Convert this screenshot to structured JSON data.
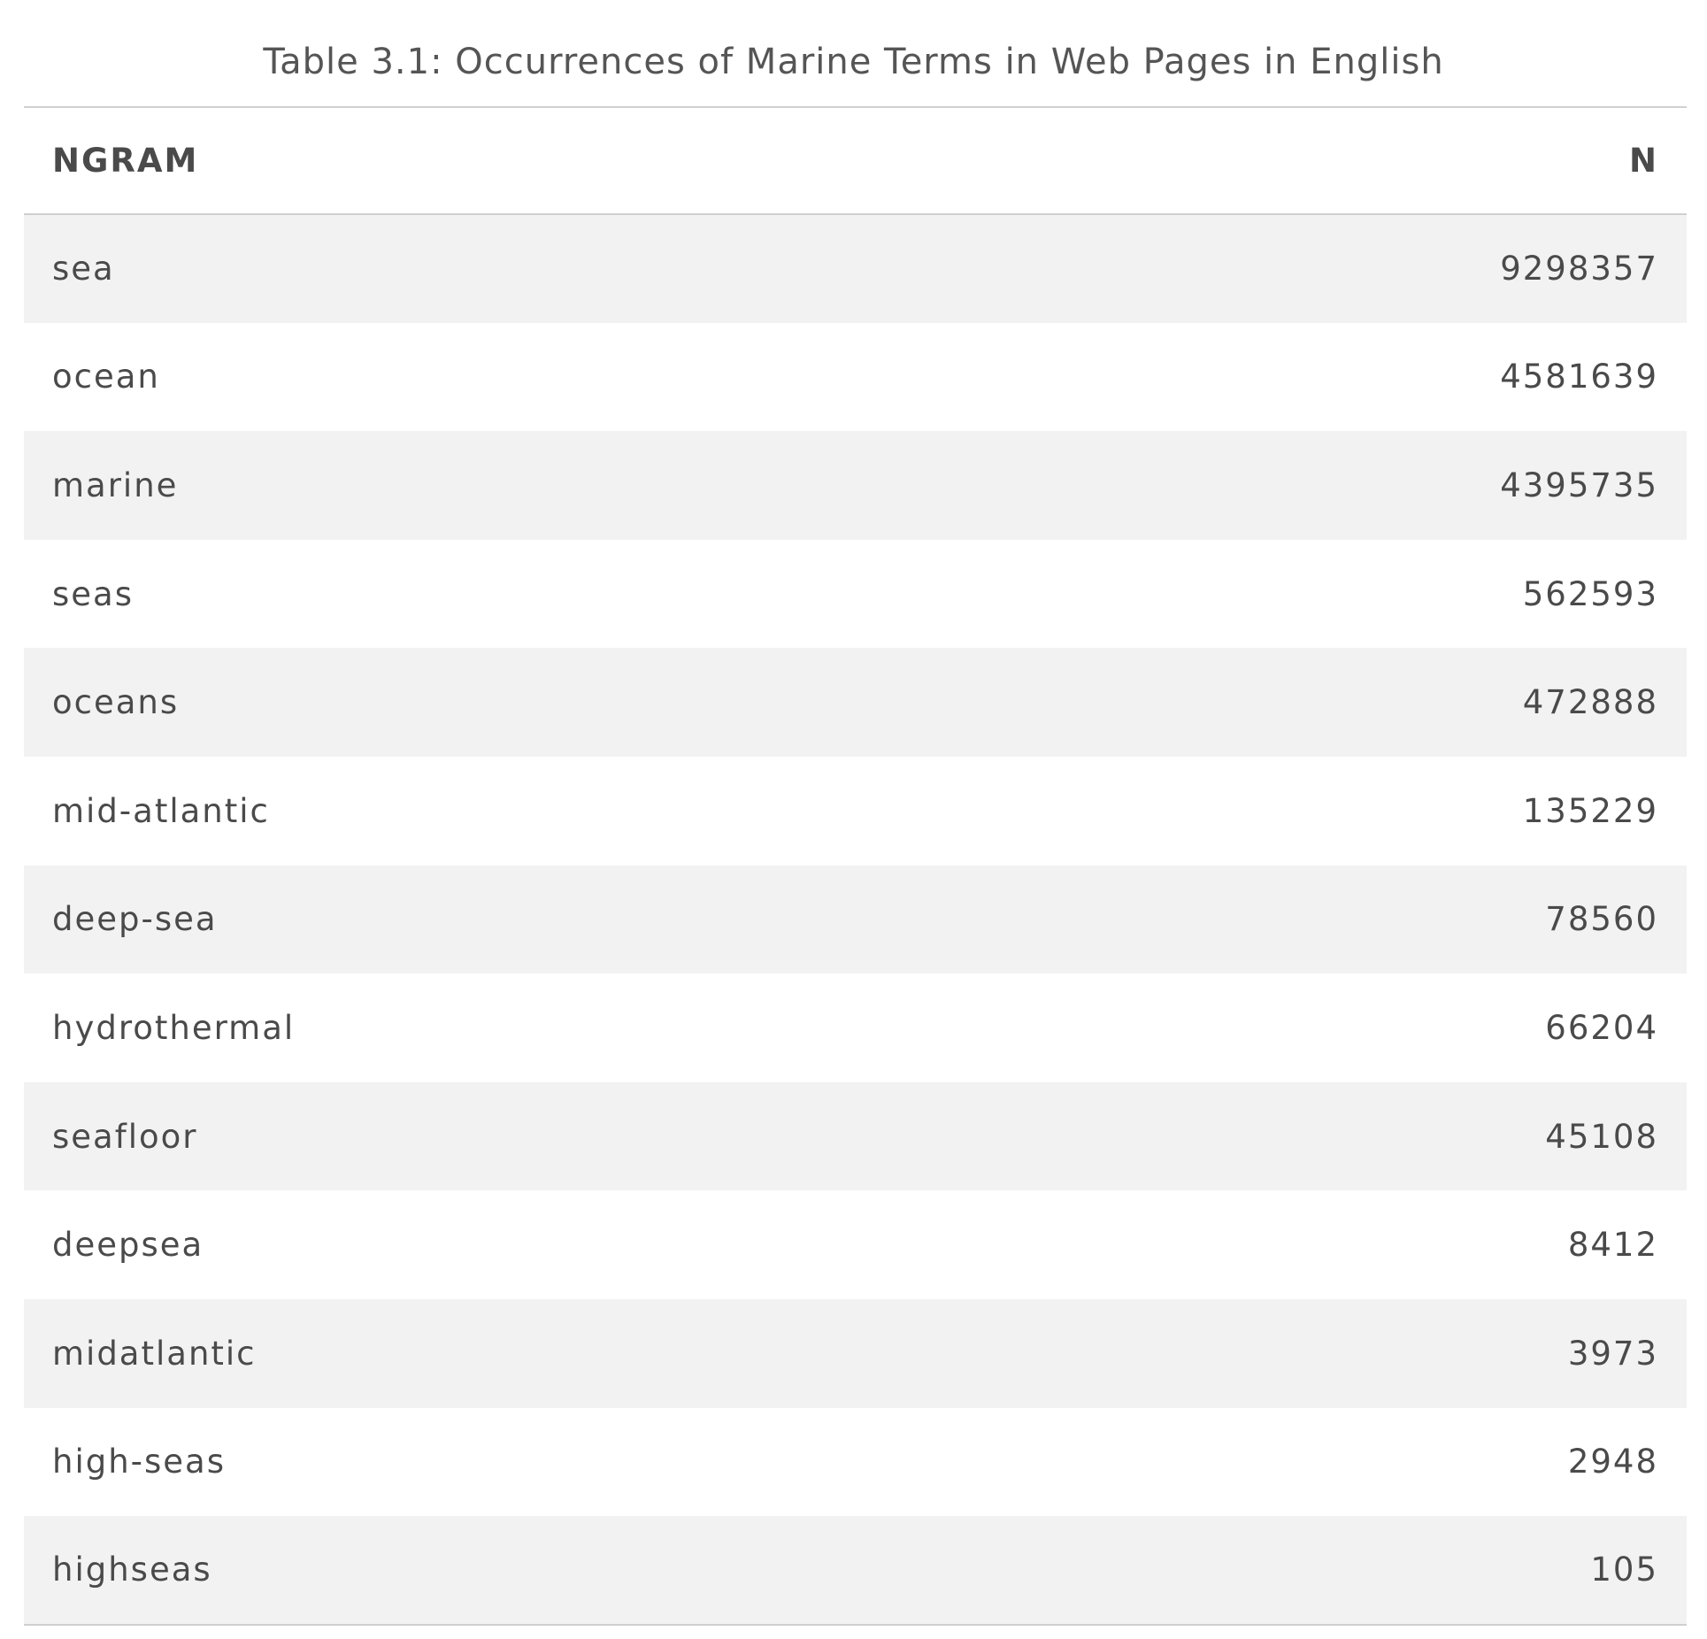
{
  "caption": "Table 3.1: Occurrences of Marine Terms in Web Pages in English",
  "columns": {
    "ngram": "NGRAM",
    "n": "N"
  },
  "rows": [
    {
      "ngram": "sea",
      "n": "9298357"
    },
    {
      "ngram": "ocean",
      "n": "4581639"
    },
    {
      "ngram": "marine",
      "n": "4395735"
    },
    {
      "ngram": "seas",
      "n": "562593"
    },
    {
      "ngram": "oceans",
      "n": "472888"
    },
    {
      "ngram": "mid-atlantic",
      "n": "135229"
    },
    {
      "ngram": "deep-sea",
      "n": "78560"
    },
    {
      "ngram": "hydrothermal",
      "n": "66204"
    },
    {
      "ngram": "seafloor",
      "n": "45108"
    },
    {
      "ngram": "deepsea",
      "n": "8412"
    },
    {
      "ngram": "midatlantic",
      "n": "3973"
    },
    {
      "ngram": "high-seas",
      "n": "2948"
    },
    {
      "ngram": "highseas",
      "n": "105"
    }
  ]
}
